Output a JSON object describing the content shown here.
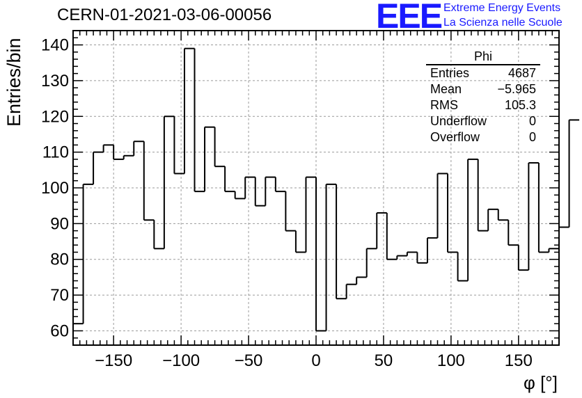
{
  "title": "CERN-01-2021-03-06-00056",
  "logo": {
    "text": "EEE",
    "line1": "Extreme Energy Events",
    "line2": "La Scienza nelle Scuole",
    "color": "#1a1aff"
  },
  "stats": {
    "title": "Phi",
    "rows": [
      {
        "label": "Entries",
        "value": "4687"
      },
      {
        "label": "Mean",
        "value": "−5.965"
      },
      {
        "label": "RMS",
        "value": "105.3"
      },
      {
        "label": "Underflow",
        "value": "0"
      },
      {
        "label": "Overflow",
        "value": "0"
      }
    ]
  },
  "chart_data": {
    "type": "bar",
    "style": "step-histogram",
    "title": "CERN-01-2021-03-06-00056",
    "xlabel": "φ [°]",
    "ylabel": "Entries/bin",
    "xlim": [
      -180,
      180
    ],
    "ylim": [
      56,
      144
    ],
    "bin_width": 7.5,
    "xticks": [
      -150,
      -100,
      -50,
      0,
      50,
      100,
      150
    ],
    "xtick_labels": [
      "−150",
      "−100",
      "−50",
      "0",
      "50",
      "100",
      "150"
    ],
    "yticks": [
      60,
      70,
      80,
      90,
      100,
      110,
      120,
      130,
      140
    ],
    "grid": true,
    "line_color": "#000000",
    "values": [
      62,
      101,
      110,
      112,
      108,
      109,
      113,
      91,
      83,
      120,
      104,
      139,
      99,
      117,
      106,
      99,
      97,
      103,
      95,
      103,
      99,
      88,
      82,
      103,
      60,
      101,
      69,
      73,
      75,
      83,
      93,
      80,
      81,
      82,
      79,
      86,
      104,
      82,
      74,
      108,
      88,
      94,
      91,
      84,
      77,
      107,
      82,
      83,
      89,
      119
    ]
  }
}
